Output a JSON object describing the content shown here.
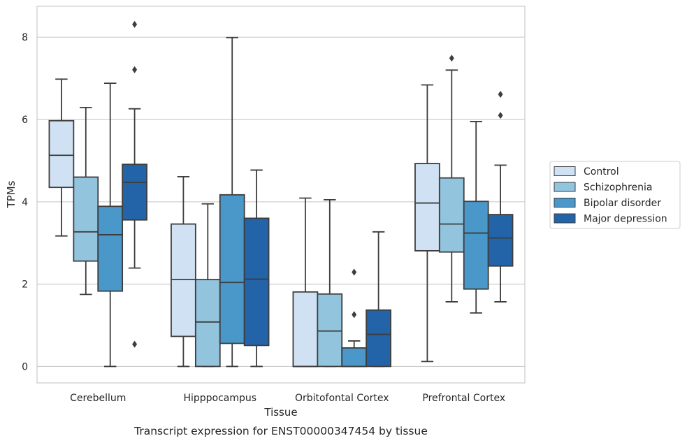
{
  "chart_data": {
    "type": "box",
    "caption": "Transcript expression for ENST00000347454 by tissue",
    "xlabel": "Tissue",
    "ylabel": "TPMs",
    "ylim": [
      -0.4,
      8.75
    ],
    "yticks": [
      0,
      2,
      4,
      6,
      8
    ],
    "grid": "horizontal",
    "legend_position": "right",
    "categories": [
      "Cerebellum",
      "Hipppocampus",
      "Orbitofontal Cortex",
      "Prefrontal Cortex"
    ],
    "series": [
      {
        "name": "Control",
        "color": "#cfe1f2",
        "boxes": [
          {
            "whisker_low": 3.17,
            "q1": 4.35,
            "median": 5.13,
            "q3": 5.97,
            "whisker_high": 6.98,
            "outliers": []
          },
          {
            "whisker_low": 0.0,
            "q1": 0.73,
            "median": 2.11,
            "q3": 3.46,
            "whisker_high": 4.61,
            "outliers": []
          },
          {
            "whisker_low": 0.0,
            "q1": 0.0,
            "median": 0.0,
            "q3": 1.81,
            "whisker_high": 4.09,
            "outliers": []
          },
          {
            "whisker_low": 0.12,
            "q1": 2.81,
            "median": 3.97,
            "q3": 4.93,
            "whisker_high": 6.84,
            "outliers": []
          }
        ]
      },
      {
        "name": "Schizophrenia",
        "color": "#93c4de",
        "boxes": [
          {
            "whisker_low": 1.75,
            "q1": 2.56,
            "median": 3.27,
            "q3": 4.6,
            "whisker_high": 6.29,
            "outliers": []
          },
          {
            "whisker_low": 0.0,
            "q1": 0.0,
            "median": 1.08,
            "q3": 2.11,
            "whisker_high": 3.95,
            "outliers": []
          },
          {
            "whisker_low": 0.0,
            "q1": 0.0,
            "median": 0.86,
            "q3": 1.76,
            "whisker_high": 4.05,
            "outliers": []
          },
          {
            "whisker_low": 1.57,
            "q1": 2.78,
            "median": 3.46,
            "q3": 4.58,
            "whisker_high": 7.2,
            "outliers": [
              7.49
            ]
          }
        ]
      },
      {
        "name": "Bipolar disorder",
        "color": "#4a98c9",
        "boxes": [
          {
            "whisker_low": 0.0,
            "q1": 1.83,
            "median": 3.2,
            "q3": 3.89,
            "whisker_high": 6.88,
            "outliers": []
          },
          {
            "whisker_low": 0.0,
            "q1": 0.56,
            "median": 2.04,
            "q3": 4.17,
            "whisker_high": 7.99,
            "outliers": []
          },
          {
            "whisker_low": 0.0,
            "q1": 0.0,
            "median": 0.0,
            "q3": 0.45,
            "whisker_high": 0.62,
            "outliers": [
              1.26,
              2.29
            ]
          },
          {
            "whisker_low": 1.3,
            "q1": 1.88,
            "median": 3.24,
            "q3": 4.01,
            "whisker_high": 5.95,
            "outliers": []
          }
        ]
      },
      {
        "name": "Major depression",
        "color": "#2363a8",
        "boxes": [
          {
            "whisker_low": 2.39,
            "q1": 3.56,
            "median": 4.47,
            "q3": 4.91,
            "whisker_high": 6.26,
            "outliers": [
              0.54,
              7.21,
              8.31
            ]
          },
          {
            "whisker_low": 0.0,
            "q1": 0.51,
            "median": 2.12,
            "q3": 3.6,
            "whisker_high": 4.77,
            "outliers": []
          },
          {
            "whisker_low": 0.0,
            "q1": 0.0,
            "median": 0.78,
            "q3": 1.37,
            "whisker_high": 3.27,
            "outliers": []
          },
          {
            "whisker_low": 1.57,
            "q1": 2.44,
            "median": 3.12,
            "q3": 3.69,
            "whisker_high": 4.89,
            "outliers": [
              6.1,
              6.61
            ]
          }
        ]
      }
    ]
  }
}
